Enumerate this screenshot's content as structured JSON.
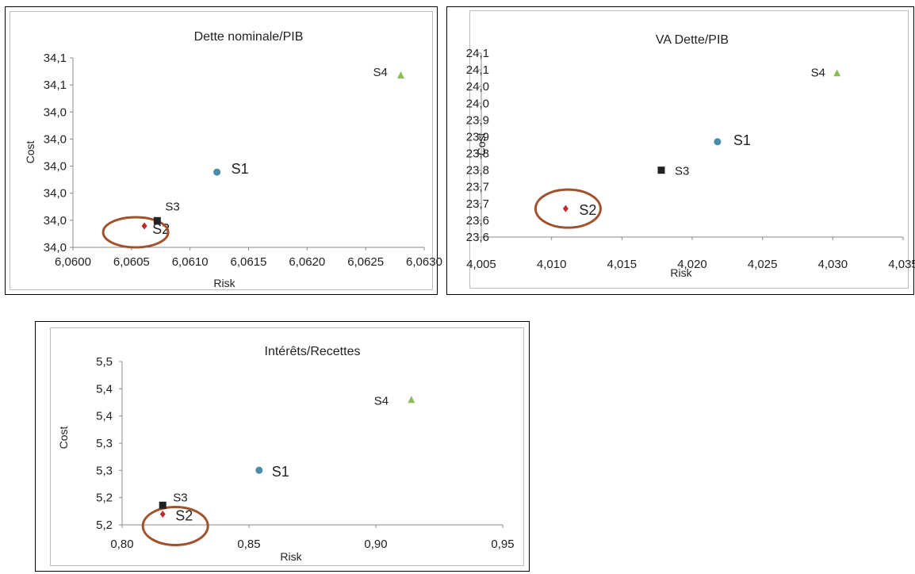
{
  "chart_data": [
    {
      "type": "scatter",
      "title": "Dette nominale/PIB",
      "xlabel": "Risk",
      "ylabel": "Cost",
      "xlim": [
        6.06,
        6.063
      ],
      "ylim": [
        34.0,
        34.1
      ],
      "x_ticks": [
        "6,0600",
        "6,0605",
        "6,0610",
        "6,0615",
        "6,0620",
        "6,0625",
        "6,0630"
      ],
      "y_ticks": [
        "34,0",
        "34,0",
        "34,0",
        "34,0",
        "34,0",
        "34,0",
        "34,1",
        "34,1"
      ],
      "grid": false,
      "series": [
        {
          "name": "S1",
          "x": 6.06123,
          "y": 34.0397,
          "marker": "circle",
          "color": "#4a8cab"
        },
        {
          "name": "S2",
          "x": 6.06061,
          "y": 34.0113,
          "marker": "diamond",
          "color": "#c0282d"
        },
        {
          "name": "S3",
          "x": 6.06072,
          "y": 34.0141,
          "marker": "square",
          "color": "#222222"
        },
        {
          "name": "S4",
          "x": 6.0628,
          "y": 34.0908,
          "marker": "triangle",
          "color": "#8cbd5a"
        }
      ],
      "highlight": "S2",
      "highlight_color": "#a0522d"
    },
    {
      "type": "scatter",
      "title": "VA Dette/PIB",
      "xlabel": "Risk",
      "ylabel": "Cost",
      "xlim": [
        4.005,
        4.035
      ],
      "ylim": [
        23.55,
        24.1
      ],
      "x_ticks": [
        "4,005",
        "4,010",
        "4,015",
        "4,020",
        "4,025",
        "4,030",
        "4,035"
      ],
      "y_ticks": [
        "23,6",
        "23,6",
        "23,7",
        "23,7",
        "23,8",
        "23,8",
        "23,9",
        "23,9",
        "24,0",
        "24,0",
        "24,1",
        "24,1"
      ],
      "grid": false,
      "series": [
        {
          "name": "S1",
          "x": 4.0218,
          "y": 23.835,
          "marker": "circle",
          "color": "#4a8cab"
        },
        {
          "name": "S2",
          "x": 4.011,
          "y": 23.635,
          "marker": "diamond",
          "color": "#c0282d"
        },
        {
          "name": "S3",
          "x": 4.0178,
          "y": 23.75,
          "marker": "square",
          "color": "#222222"
        },
        {
          "name": "S4",
          "x": 4.0303,
          "y": 24.04,
          "marker": "triangle",
          "color": "#8cbd5a"
        }
      ],
      "highlight": "S2",
      "highlight_color": "#a0522d"
    },
    {
      "type": "scatter",
      "title": "Intérêts/Recettes",
      "xlabel": "Risk",
      "ylabel": "Cost",
      "xlim": [
        0.8,
        0.95
      ],
      "ylim": [
        5.15,
        5.5
      ],
      "x_ticks": [
        "0,80",
        "0,85",
        "0,90",
        "0,95"
      ],
      "y_ticks": [
        "5,2",
        "5,2",
        "5,3",
        "5,3",
        "5,4",
        "5,4",
        "5,5"
      ],
      "grid": false,
      "series": [
        {
          "name": "S1",
          "x": 0.854,
          "y": 5.267,
          "marker": "circle",
          "color": "#4a8cab"
        },
        {
          "name": "S2",
          "x": 0.816,
          "y": 5.173,
          "marker": "diamond",
          "color": "#c0282d"
        },
        {
          "name": "S3",
          "x": 0.816,
          "y": 5.192,
          "marker": "square",
          "color": "#222222"
        },
        {
          "name": "S4",
          "x": 0.914,
          "y": 5.418,
          "marker": "triangle",
          "color": "#8cbd5a"
        }
      ],
      "highlight": "S2",
      "highlight_color": "#a0522d"
    }
  ]
}
